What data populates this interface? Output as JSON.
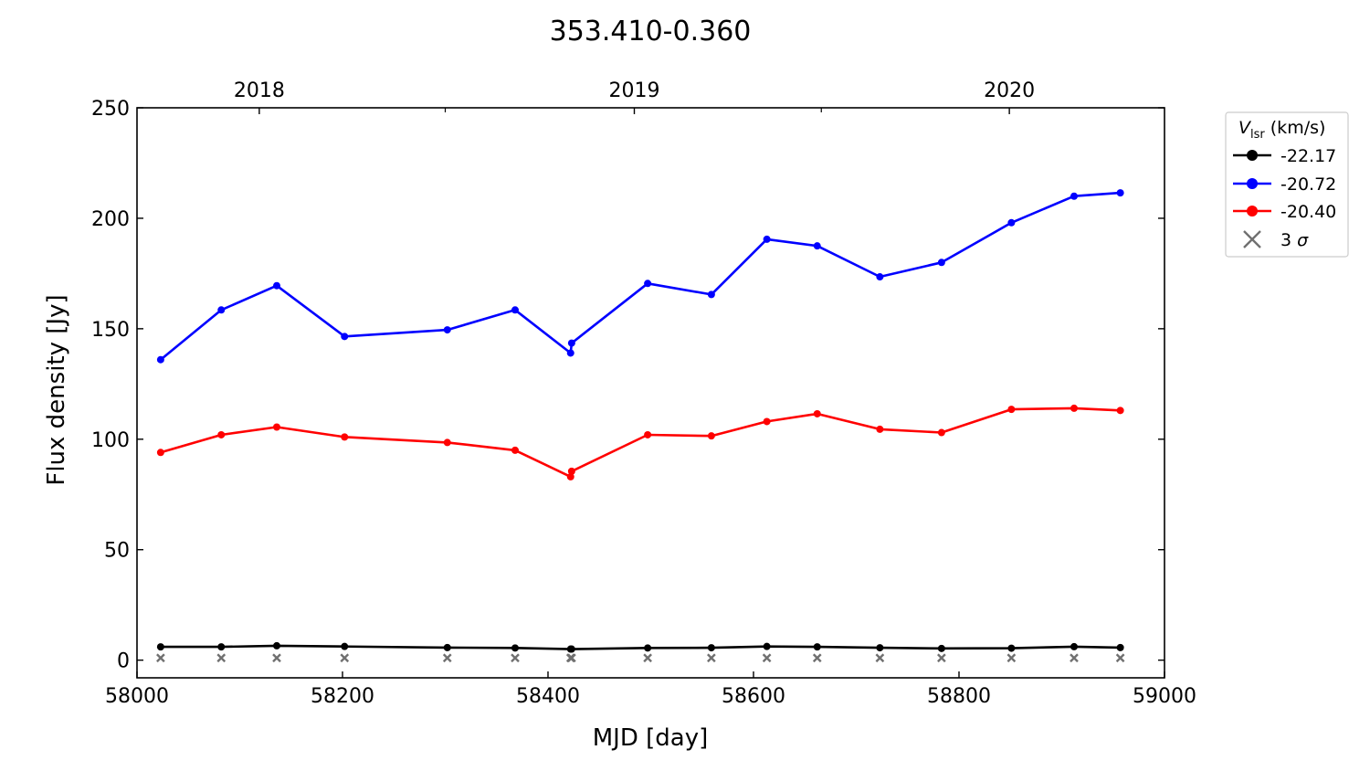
{
  "chart_data": {
    "type": "line",
    "title": "353.410-0.360",
    "xlabel": "MJD [day]",
    "ylabel": "Flux density [Jy]",
    "xlim": [
      58000,
      59000
    ],
    "ylim": [
      -8,
      250
    ],
    "xticks": [
      58000,
      58200,
      58400,
      58600,
      58800,
      59000
    ],
    "yticks": [
      0,
      50,
      100,
      150,
      200,
      250
    ],
    "top_axis": {
      "ticks": [
        {
          "label": "2018",
          "mjd": 58119
        },
        {
          "label": "2019",
          "mjd": 58484
        },
        {
          "label": "2020",
          "mjd": 58849
        }
      ],
      "minor_ticks": [
        58300,
        58666,
        59031
      ]
    },
    "legend": {
      "title_symbol": "V",
      "title_subscript": "lsr",
      "title_unit": "(km/s)",
      "placement": "outside-right-top",
      "threshold_label_prefix": "3 ",
      "threshold_label_symbol": "σ"
    },
    "x": [
      58023,
      58082,
      58136,
      58202,
      58302,
      58368,
      58422,
      58423,
      58497,
      58559,
      58613,
      58662,
      58723,
      58783,
      58851,
      58912,
      58957
    ],
    "series": [
      {
        "name": "-22.17",
        "color": "#000000",
        "values": [
          6,
          6,
          6.5,
          6.2,
          5.7,
          5.5,
          5,
          5,
          5.5,
          5.6,
          6.2,
          6,
          5.6,
          5.3,
          5.4,
          6.1,
          5.7
        ]
      },
      {
        "name": "-20.72",
        "color": "#0000ff",
        "values": [
          136,
          158.5,
          169.5,
          146.5,
          149.5,
          158.5,
          139,
          143.5,
          170.5,
          165.5,
          190.5,
          187.5,
          173.5,
          180,
          198,
          210,
          211.5
        ]
      },
      {
        "name": "-20.40",
        "color": "#ff0000",
        "values": [
          94,
          102,
          105.5,
          101,
          98.5,
          95,
          83,
          85.5,
          102,
          101.5,
          108,
          111.5,
          104.5,
          103,
          113.5,
          114,
          113
        ]
      }
    ],
    "threshold_3sigma": {
      "name": "3 σ",
      "color": "#707070",
      "values": [
        1,
        1,
        1,
        1,
        1,
        1,
        1,
        1,
        1,
        1,
        1,
        1,
        1,
        1,
        1,
        1,
        1
      ]
    },
    "grid": false
  }
}
